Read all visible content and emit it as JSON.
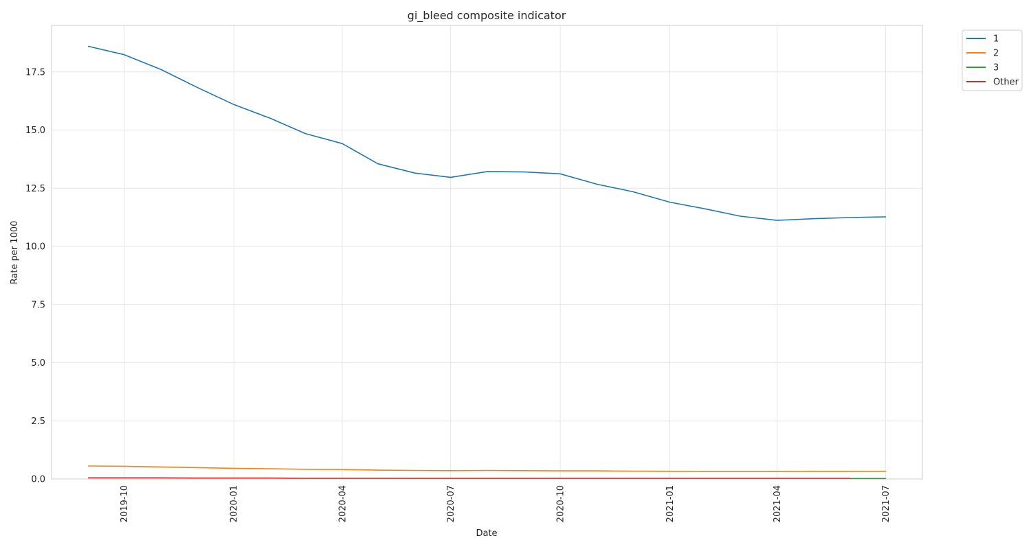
{
  "chart_data": {
    "type": "line",
    "title": "gi_bleed composite indicator",
    "xlabel": "Date",
    "ylabel": "Rate per 1000",
    "ylim": [
      0,
      19.5
    ],
    "xlim": [
      "2019-08-01",
      "2021-08-01"
    ],
    "yticks": [
      0.0,
      2.5,
      5.0,
      7.5,
      10.0,
      12.5,
      15.0,
      17.5
    ],
    "ytick_labels": [
      "0.0",
      "2.5",
      "5.0",
      "7.5",
      "10.0",
      "12.5",
      "15.0",
      "17.5"
    ],
    "xticks": [
      "2019-10-01",
      "2020-01-01",
      "2020-04-01",
      "2020-07-01",
      "2020-10-01",
      "2021-01-01",
      "2021-04-01",
      "2021-07-01"
    ],
    "xtick_labels": [
      "2019-10",
      "2020-01",
      "2020-04",
      "2020-07",
      "2020-10",
      "2021-01",
      "2021-04",
      "2021-07"
    ],
    "grid": true,
    "legend_position": "outside-top-right",
    "x": [
      "2019-09-01",
      "2019-10-01",
      "2019-11-01",
      "2019-12-01",
      "2020-01-01",
      "2020-02-01",
      "2020-03-01",
      "2020-04-01",
      "2020-05-01",
      "2020-06-01",
      "2020-07-01",
      "2020-08-01",
      "2020-09-01",
      "2020-10-01",
      "2020-11-01",
      "2020-12-01",
      "2021-01-01",
      "2021-02-01",
      "2021-03-01",
      "2021-04-01",
      "2021-05-01",
      "2021-06-01",
      "2021-07-01"
    ],
    "series": [
      {
        "name": "1",
        "color": "#1f77b4",
        "values": [
          18.6,
          18.24,
          17.6,
          16.84,
          16.1,
          15.5,
          14.85,
          14.42,
          13.55,
          13.15,
          12.97,
          13.22,
          13.2,
          13.12,
          12.67,
          12.35,
          11.9,
          11.6,
          11.3,
          11.12,
          11.19,
          11.24,
          11.27
        ]
      },
      {
        "name": "2",
        "color": "#ff7f0e",
        "values": [
          0.56,
          0.55,
          0.52,
          0.49,
          0.46,
          0.44,
          0.42,
          0.41,
          0.38,
          0.37,
          0.36,
          0.37,
          0.36,
          0.35,
          0.35,
          0.34,
          0.33,
          0.32,
          0.32,
          0.32,
          0.33,
          0.33,
          0.33
        ]
      },
      {
        "name": "3",
        "color": "#2ca02c",
        "values": [
          null,
          null,
          null,
          null,
          null,
          null,
          null,
          null,
          null,
          null,
          null,
          null,
          null,
          null,
          null,
          null,
          null,
          null,
          null,
          null,
          null,
          0.02,
          0.02
        ]
      },
      {
        "name": "Other",
        "color": "#d62728",
        "values": [
          0.05,
          0.05,
          0.05,
          0.04,
          0.04,
          0.04,
          0.03,
          0.03,
          0.03,
          0.03,
          0.03,
          0.03,
          0.03,
          0.03,
          0.03,
          0.03,
          0.03,
          0.03,
          0.03,
          0.03,
          0.03,
          0.03,
          null
        ]
      }
    ]
  }
}
